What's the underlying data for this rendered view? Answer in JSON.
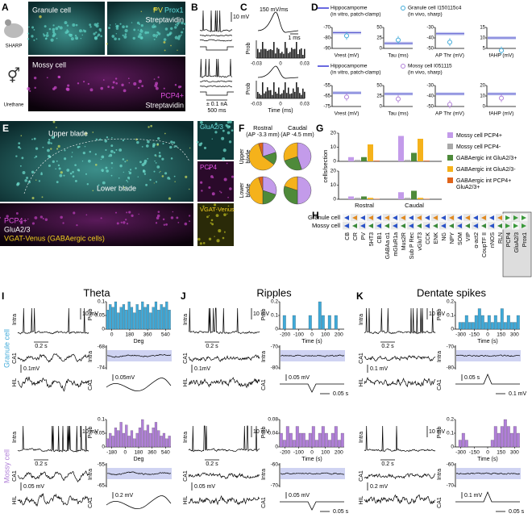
{
  "A": {
    "label": "A",
    "granule": "Granule cell",
    "pv": "PV",
    "prox1": "Prox1",
    "strep": "Streptavidin",
    "mossy": "Mossy cell",
    "pcp4": "PCP4+",
    "strep2": "Streptavidin",
    "sharp": "SHARP",
    "urethane": "Urethane"
  },
  "B": {
    "label": "B",
    "mv": "10 mV",
    "na": "± 0.1 nA",
    "ms": "500 ms"
  },
  "C": {
    "label": "C",
    "rate": "150 mV/ms",
    "ms": "1 ms",
    "prob": "Prob",
    "xticks": [
      -0.03,
      0,
      0.03
    ],
    "xlabel": "Time (ms)"
  },
  "D": {
    "label": "D",
    "hippo": "Hippocampome",
    "hippo_sub": "(in vitro, patch-clamp)",
    "rows": [
      {
        "cell": "Granule cell I150115c4",
        "cell_sub": "(in vivo, sharp)",
        "plots": [
          {
            "xlabel": "Vrest (mV)",
            "yticks": [
              -70,
              -80,
              -90
            ],
            "ref": -75,
            "value": -78
          },
          {
            "xlabel": "Tau (ms)",
            "yticks": [
              50,
              25,
              0
            ],
            "ref": 12,
            "value": 20
          },
          {
            "xlabel": "AP Thr (mV)",
            "yticks": [
              -30,
              -40,
              -50
            ],
            "ref": -36,
            "value": -44
          },
          {
            "xlabel": "fAHP (mV)",
            "yticks": [
              15,
              10,
              5
            ],
            "ref": 10,
            "value": 4
          }
        ]
      },
      {
        "cell": "Mossy cell I051115",
        "cell_sub": "(in vivo, sharp)",
        "plots": [
          {
            "xlabel": "Vrest (mV)",
            "yticks": [
              -55,
              -65,
              -75
            ],
            "ref": -62,
            "value": -66
          },
          {
            "xlabel": "Tau (ms)",
            "yticks": [
              50,
              25,
              0
            ],
            "ref": 30,
            "value": 18
          },
          {
            "xlabel": "AP Thr (mV)",
            "yticks": [
              -30,
              -40,
              -50
            ],
            "ref": -38,
            "value": -48
          },
          {
            "xlabel": "fAHP (mV)",
            "yticks": [
              20,
              10,
              0
            ],
            "ref": 12,
            "value": 8
          }
        ]
      }
    ]
  },
  "E": {
    "label": "E",
    "upper": "Upper blade",
    "lower": "Lower blade",
    "pcp4": "PCP4+",
    "gluа": "GluA2/3",
    "vgat": "VGAT-Venus (GABAergic cells)",
    "s1": "GluA2/3",
    "s2": "PCP4",
    "s3": "VGAT-Venus"
  },
  "F": {
    "label": "F",
    "rostral": "Rostral",
    "rostral_ap": "(AP -3.3 mm)",
    "caudal": "Caudal",
    "caudal_ap": "(AP -4.5 mm)",
    "upper": "Upper",
    "upper2": "blade",
    "lower": "Lower",
    "lower2": "blade",
    "pies": [
      [
        20,
        0,
        15,
        60,
        5
      ],
      [
        45,
        0,
        25,
        30,
        0
      ],
      [
        30,
        0,
        20,
        45,
        5
      ],
      [
        50,
        0,
        30,
        20,
        0
      ]
    ]
  },
  "G": {
    "label": "G",
    "ylabel": "cells/section",
    "categories": [
      "Rostral",
      "Caudal"
    ],
    "ylim": [
      0,
      20
    ],
    "yticks": [
      20,
      10,
      0
    ],
    "series": [
      {
        "name": "Mossy cell PCP4+",
        "color": "#c39bea",
        "values_upper": [
          3,
          18
        ],
        "values_lower": [
          2,
          5
        ]
      },
      {
        "name": "Mossy cell PCP4-",
        "color": "#a9a9a9",
        "values_upper": [
          1,
          1
        ],
        "values_lower": [
          1,
          1
        ]
      },
      {
        "name": "GABAergic int GluA2/3+",
        "color": "#4e8a3a",
        "values_upper": [
          3,
          6
        ],
        "values_lower": [
          2,
          6
        ]
      },
      {
        "name": "GABAergic int GluA2/3-",
        "color": "#f5b21b",
        "values_upper": [
          12,
          16
        ],
        "values_lower": [
          1,
          1
        ]
      },
      {
        "name": "GABAergic int PCP4+",
        "name2": "GluA2/3+",
        "color": "#e0641b",
        "values_upper": [
          0.5,
          0.5
        ],
        "values_lower": [
          0.3,
          0.3
        ]
      }
    ]
  },
  "H": {
    "label": "H",
    "rows": [
      "Granule cell",
      "Mossy cell"
    ],
    "markers": [
      "CB",
      "CR",
      "PV",
      "5HT3",
      "CB1",
      "GABAa α1",
      "mGluR1a",
      "Mus2R",
      "Sub P Rec",
      "vGluT3",
      "CCK",
      "ENK",
      "NG",
      "NPY",
      "SOM",
      "VIP",
      "α-act2",
      "CoupTF II",
      "nNOS",
      "RLN",
      "PCP4",
      "GluA2/3",
      "Prox1"
    ]
  },
  "I": {
    "label": "I",
    "title": "Theta",
    "rows": [
      {
        "cell": "Granule cell",
        "intra": "Intra",
        "ca1": "CA1",
        "hil": "HIL",
        "s1": "0.2 s",
        "s2": "10 mV",
        "s3": "0.1mV",
        "prob": "Prob",
        "hist": [
          0.07,
          0.09,
          0.08,
          0.1,
          0.06,
          0.08,
          0.09,
          0.07,
          0.1,
          0.08,
          0.06,
          0.09,
          0.07,
          0.1,
          0.08,
          0.09,
          0.06,
          0.08,
          0.1,
          0.07,
          0.09,
          0.08,
          0.1,
          0.07
        ],
        "hyticks": [
          0.1,
          0.05,
          0
        ],
        "hxticks": [
          0,
          180,
          360,
          540
        ],
        "xlabel": "Deg",
        "ri": "Intra",
        "rc": "CA1",
        "iyticks": [
          -68,
          -74
        ],
        "r1": "0.05mV"
      },
      {
        "cell": "Mossy cell",
        "intra": "Intra",
        "ca1": "CA1",
        "hil": "HIL",
        "s1": "0.2 s",
        "s2": "10 mV",
        "s3": "0.05 mV",
        "prob": "Prob",
        "hist": [
          0.03,
          0.05,
          0.04,
          0.07,
          0.06,
          0.09,
          0.05,
          0.08,
          0.04,
          0.06,
          0.03,
          0.05,
          0.07,
          0.1,
          0.06,
          0.08,
          0.05,
          0.07,
          0.09,
          0.06,
          0.04,
          0.05,
          0.03,
          0.04
        ],
        "hyticks": [
          0.1,
          0.05,
          0
        ],
        "hxticks": [
          -180,
          0,
          180,
          360,
          540
        ],
        "xlabel": "Deg",
        "ri": "Intra",
        "rc": "CA1",
        "iyticks": [
          -55,
          -65
        ],
        "r1": "0.2 mV"
      }
    ]
  },
  "J": {
    "label": "J",
    "title": "Ripples",
    "rows": [
      {
        "intra": "Intra",
        "ca1": "CA1",
        "hil": "HIL",
        "s1": "0.2 s",
        "s2": "10 mV",
        "s3": "0.1mV",
        "prob": "Prob",
        "hist": [
          0,
          0.1,
          0,
          0,
          0.1,
          0,
          0,
          0,
          0,
          0.1,
          0,
          0,
          0.2,
          0.1,
          0,
          0.1,
          0,
          0.1,
          0,
          0
        ],
        "hyticks": [
          0.2,
          0.1,
          0
        ],
        "hxticks": [
          -200,
          -100,
          0,
          100,
          200
        ],
        "xlabel": "Time (s)",
        "ri": "Intra",
        "rc": "CA1",
        "iyticks": [
          -70,
          -80
        ],
        "r1": "0.05 mV",
        "r2": "0.05 s"
      },
      {
        "intra": "Intra",
        "ca1": "CA1",
        "hil": "HIL",
        "s1": "0.2 s",
        "s2": "10 mV",
        "s3": "0.05 mV",
        "prob": "Prob",
        "hist": [
          0.04,
          0.02,
          0.06,
          0.04,
          0.02,
          0.06,
          0.04,
          0.04,
          0.02,
          0.04,
          0.06,
          0.02,
          0.04,
          0.06,
          0.04,
          0.02,
          0.04,
          0.06,
          0.02,
          0.04
        ],
        "hyticks": [
          0.08,
          0.04,
          0
        ],
        "hxticks": [
          -200,
          -100,
          0,
          100,
          200
        ],
        "xlabel": "Time (s)",
        "ri": "Intra",
        "rc": "CA1",
        "iyticks": [
          -60,
          -70
        ],
        "r1": "0.05 mV",
        "r2": "0.05 s"
      }
    ]
  },
  "K": {
    "label": "K",
    "title": "Dentate spikes",
    "rows": [
      {
        "intra": "Intra",
        "ca1": "CA1",
        "hil": "HIL",
        "s1": "0.2 s",
        "s2": "10 mV",
        "s3": "0.1 mV",
        "prob": "Prob",
        "hist": [
          0,
          0.05,
          0.05,
          0.1,
          0.05,
          0.05,
          0.1,
          0.15,
          0.1,
          0.05,
          0.1,
          0.05,
          0.1,
          0.05,
          0.15,
          0.05,
          0.1,
          0.05,
          0.05,
          0.1
        ],
        "hyticks": [
          0.2,
          0.1,
          0
        ],
        "hxticks": [
          -300,
          -150,
          0,
          150,
          300
        ],
        "xlabel": "Time (s)",
        "ri": "Intra",
        "rc": "CA1",
        "iyticks": [
          -70,
          -80
        ],
        "r1": "0.05 s",
        "r2": "0.1 mV"
      },
      {
        "intra": "Intra",
        "ca1": "CA1",
        "hil": "HIL",
        "s1": "0.2 s",
        "s2": "10 mV",
        "s3": "0.2 mV",
        "prob": "Prob",
        "hist": [
          0,
          0.05,
          0.1,
          0.05,
          0,
          0,
          0,
          0,
          0,
          0,
          0,
          0.05,
          0.15,
          0.1,
          0.15,
          0.2,
          0.15,
          0.1,
          0.15,
          0.1
        ],
        "hyticks": [
          0.2,
          0.1,
          0
        ],
        "hxticks": [
          -300,
          -150,
          0,
          150,
          300
        ],
        "xlabel": "Time (s)",
        "ri": "Intra",
        "rc": "CA1",
        "iyticks": [
          -60,
          -70
        ],
        "r1": "0.1 mV",
        "r2": "0.05 s"
      }
    ]
  }
}
